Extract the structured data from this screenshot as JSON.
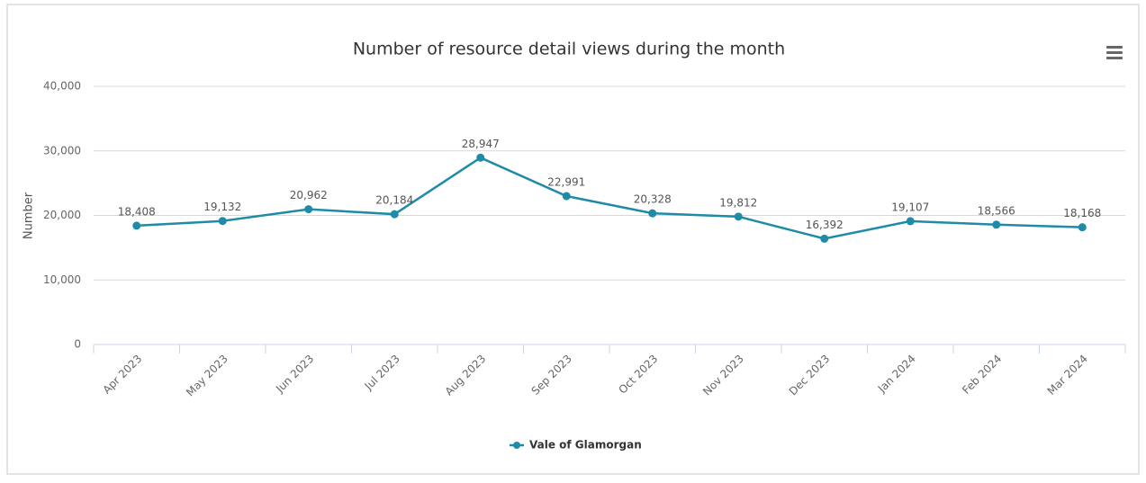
{
  "chart_data": {
    "type": "line",
    "title": "Number of resource detail views during the month",
    "y_label": "Number",
    "categories": [
      "Apr 2023",
      "May 2023",
      "Jun 2023",
      "Jul 2023",
      "Aug 2023",
      "Sep 2023",
      "Oct 2023",
      "Nov 2023",
      "Dec 2023",
      "Jan 2024",
      "Feb 2024",
      "Mar 2024"
    ],
    "series": [
      {
        "name": "Vale of Glamorgan",
        "color": "#1f8ba6",
        "values": [
          18408,
          19132,
          20962,
          20184,
          28947,
          22991,
          20328,
          19812,
          16392,
          19107,
          18566,
          18168
        ],
        "value_labels": [
          "18,408",
          "19,132",
          "20,962",
          "20,184",
          "28,947",
          "22,991",
          "20,328",
          "19,812",
          "16,392",
          "19,107",
          "18,566",
          "18,168"
        ]
      }
    ],
    "ylim": [
      0,
      40000
    ],
    "yticks": [
      0,
      {
        "value": 10000,
        "label": "10,000"
      },
      {
        "value": 20000,
        "label": "20,000"
      },
      {
        "value": 30000,
        "label": "30,000"
      },
      {
        "value": 40000,
        "label": "40,000"
      }
    ],
    "grid": true,
    "legend": "bottom"
  }
}
